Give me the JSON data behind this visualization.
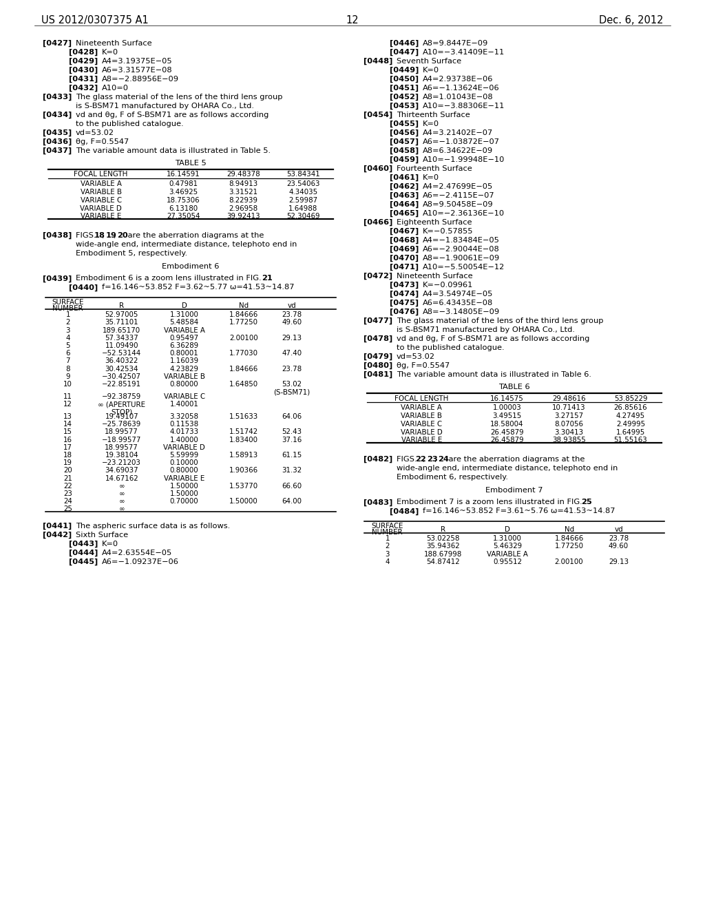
{
  "background_color": "#ffffff",
  "header_left": "US 2012/0307375 A1",
  "header_center": "12",
  "header_right": "Dec. 6, 2012",
  "table5": {
    "title": "TABLE 5",
    "headers": [
      "FOCAL LENGTH",
      "16.14591",
      "29.48378",
      "53.84341"
    ],
    "rows": [
      [
        "VARIABLE A",
        "0.47981",
        "8.94913",
        "23.54063"
      ],
      [
        "VARIABLE B",
        "3.46925",
        "3.31521",
        "4.34035"
      ],
      [
        "VARIABLE C",
        "18.75306",
        "8.22939",
        "2.59987"
      ],
      [
        "VARIABLE D",
        "6.13180",
        "2.96958",
        "1.64988"
      ],
      [
        "VARIABLE E",
        "27.35054",
        "39.92413",
        "52.30469"
      ]
    ]
  },
  "surface_table6": {
    "rows": [
      [
        "1",
        "52.97005",
        "1.31000",
        "1.84666",
        "23.78"
      ],
      [
        "2",
        "35.71101",
        "5.48584",
        "1.77250",
        "49.60"
      ],
      [
        "3",
        "189.65170",
        "VARIABLE A",
        "",
        ""
      ],
      [
        "4",
        "57.34337",
        "0.95497",
        "2.00100",
        "29.13"
      ],
      [
        "5",
        "11.09490",
        "6.36289",
        "",
        ""
      ],
      [
        "6",
        "−52.53144",
        "0.80001",
        "1.77030",
        "47.40"
      ],
      [
        "7",
        "36.40322",
        "1.16039",
        "",
        ""
      ],
      [
        "8",
        "30.42534",
        "4.23829",
        "1.84666",
        "23.78"
      ],
      [
        "9",
        "−30.42507",
        "VARIABLE B",
        "",
        ""
      ],
      [
        "10",
        "−22.85191",
        "0.80000",
        "1.64850",
        "53.02"
      ],
      [
        "10b",
        "",
        "",
        "",
        "(S-BSM71)"
      ],
      [
        "11",
        "−92.38759",
        "VARIABLE C",
        "",
        ""
      ],
      [
        "12",
        "∞ (APERTURE",
        "1.40001",
        "",
        ""
      ],
      [
        "12b",
        "STOP)",
        "",
        "",
        ""
      ],
      [
        "13",
        "19.49107",
        "3.32058",
        "1.51633",
        "64.06"
      ],
      [
        "14",
        "−25.78639",
        "0.11538",
        "",
        ""
      ],
      [
        "15",
        "18.99577",
        "4.01733",
        "1.51742",
        "52.43"
      ],
      [
        "16",
        "−18.99577",
        "1.40000",
        "1.83400",
        "37.16"
      ],
      [
        "17",
        "18.99577",
        "VARIABLE D",
        "",
        ""
      ],
      [
        "18",
        "19.38104",
        "5.59999",
        "1.58913",
        "61.15"
      ],
      [
        "19",
        "−23.21203",
        "0.10000",
        "",
        ""
      ],
      [
        "20",
        "34.69037",
        "0.80000",
        "1.90366",
        "31.32"
      ],
      [
        "21",
        "14.67162",
        "VARIABLE E",
        "",
        ""
      ],
      [
        "22",
        "∞",
        "1.50000",
        "1.53770",
        "66.60"
      ],
      [
        "23",
        "∞",
        "1.50000",
        "",
        ""
      ],
      [
        "24",
        "∞",
        "0.70000",
        "1.50000",
        "64.00"
      ],
      [
        "25",
        "∞",
        "",
        "",
        ""
      ]
    ]
  },
  "table6": {
    "title": "TABLE 6",
    "headers": [
      "FOCAL LENGTH",
      "16.14575",
      "29.48616",
      "53.85229"
    ],
    "rows": [
      [
        "VARIABLE A",
        "1.00003",
        "10.71413",
        "26.85616"
      ],
      [
        "VARIABLE B",
        "3.49515",
        "3.27157",
        "4.27495"
      ],
      [
        "VARIABLE C",
        "18.58004",
        "8.07056",
        "2.49995"
      ],
      [
        "VARIABLE D",
        "26.45879",
        "3.30413",
        "1.64995"
      ],
      [
        "VARIABLE E",
        "26.45879",
        "38.93855",
        "51.55163"
      ]
    ]
  },
  "surface_table7_start": {
    "rows": [
      [
        "1",
        "53.02258",
        "1.31000",
        "1.84666",
        "23.78"
      ],
      [
        "2",
        "35.94362",
        "5.46329",
        "1.77250",
        "49.60"
      ],
      [
        "3",
        "188.67998",
        "VARIABLE A",
        "",
        ""
      ],
      [
        "4",
        "54.87412",
        "0.95512",
        "2.00100",
        "29.13"
      ]
    ]
  }
}
